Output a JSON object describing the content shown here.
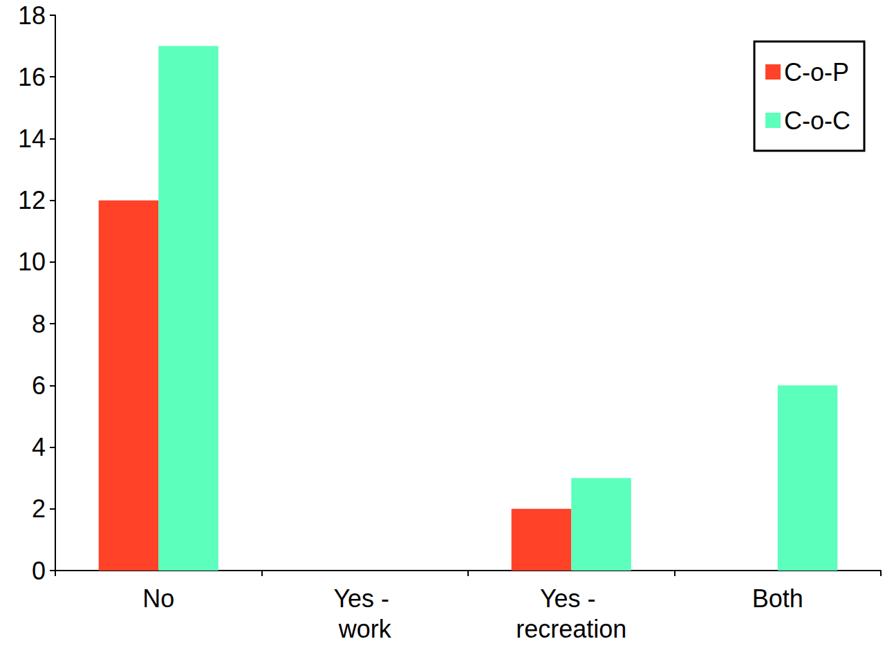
{
  "chart_data": {
    "type": "bar",
    "categories": [
      "No",
      "Yes - work",
      "Yes - recreation",
      "Both"
    ],
    "series": [
      {
        "name": "C-o-P",
        "color": "#ff4228",
        "values": [
          12,
          0,
          2,
          0
        ]
      },
      {
        "name": "C-o-C",
        "color": "#5cffbc",
        "values": [
          17,
          0,
          3,
          6
        ]
      }
    ],
    "ylim": [
      0,
      18
    ],
    "yticks": [
      0,
      2,
      4,
      6,
      8,
      10,
      12,
      14,
      16,
      18
    ],
    "grid": false,
    "legend": "top-right"
  }
}
